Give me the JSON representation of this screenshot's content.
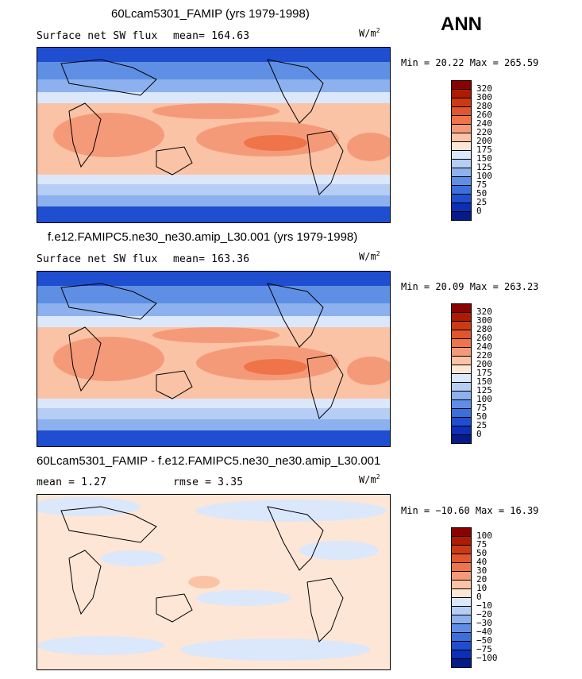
{
  "header": {
    "season": "ANN"
  },
  "panels": [
    {
      "title": "60Lcam5301_FAMIP (yrs 1979-1998)",
      "left_label": "Surface net SW flux",
      "stat_label": "mean= 164.63",
      "units": "W/m",
      "units_sup": "2",
      "minmax": "Min =  20.22 Max = 265.59",
      "palette": "abs",
      "colorbar_ticks": [
        "320",
        "300",
        "280",
        "260",
        "240",
        "220",
        "200",
        "175",
        "150",
        "125",
        "100",
        "75",
        "50",
        "25",
        "0"
      ]
    },
    {
      "title": "f.e12.FAMIPC5.ne30_ne30.amip_L30.001 (yrs 1979-1998)",
      "left_label": "Surface net SW flux",
      "stat_label": "mean= 163.36",
      "units": "W/m",
      "units_sup": "2",
      "minmax": "Min =  20.09 Max = 263.23",
      "palette": "abs",
      "colorbar_ticks": [
        "320",
        "300",
        "280",
        "260",
        "240",
        "220",
        "200",
        "175",
        "150",
        "125",
        "100",
        "75",
        "50",
        "25",
        "0"
      ]
    },
    {
      "title": "60Lcam5301_FAMIP - f.e12.FAMIPC5.ne30_ne30.amip_L30.001",
      "left_label": "mean =    1.27",
      "stat_label": "rmse =    3.35",
      "units": "W/m",
      "units_sup": "2",
      "minmax": "Min = −10.60 Max =  16.39",
      "palette": "diff",
      "colorbar_ticks": [
        "100",
        "75",
        "50",
        "40",
        "30",
        "20",
        "10",
        "0",
        "−10",
        "−20",
        "−30",
        "−40",
        "−50",
        "−75",
        "−100"
      ]
    }
  ],
  "colors": {
    "abs": [
      "#8b0000",
      "#b01a00",
      "#cc3a14",
      "#e0562e",
      "#f0744a",
      "#f59a78",
      "#fbc3a6",
      "#fde6d6",
      "#dbe7fb",
      "#b6cdf5",
      "#8cb1ee",
      "#5e8fe4",
      "#3b6fdc",
      "#1f4fd0",
      "#0c2fb8",
      "#071a8a"
    ],
    "diff": [
      "#8b0000",
      "#b01a00",
      "#cc3a14",
      "#e0562e",
      "#f0744a",
      "#f59a78",
      "#fbc3a6",
      "#fde6d6",
      "#dbe7fb",
      "#b6cdf5",
      "#8cb1ee",
      "#5e8fe4",
      "#3b6fdc",
      "#1f4fd0",
      "#0c2fb8",
      "#071a8a"
    ]
  }
}
